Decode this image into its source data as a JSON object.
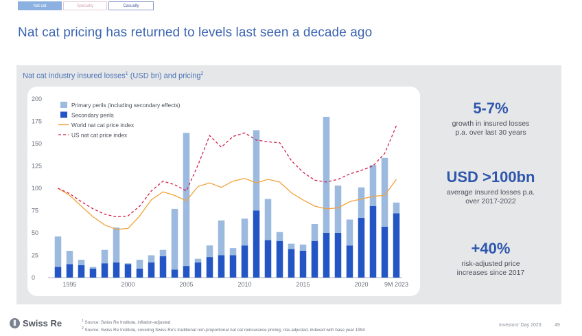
{
  "tabs": [
    {
      "label": "Nat cat",
      "active": true
    },
    {
      "label": "Specialty",
      "active": false
    },
    {
      "label": "Casualty",
      "active": false
    }
  ],
  "page_title": "Nat cat pricing has returned to levels last seen a decade ago",
  "panel": {
    "title": "Nat cat industry insured losses",
    "title_suffix": "(USD bn) and pricing",
    "sup1": "1",
    "sup2": "2"
  },
  "kpis": [
    {
      "value": "5-7%",
      "text1": "growth in insured losses",
      "text2": "p.a. over last 30 years"
    },
    {
      "value": "USD >100bn",
      "text1": "average insured losses p.a.",
      "text2": "over 2017-2022"
    },
    {
      "value": "+40%",
      "text1": "risk-adjusted price",
      "text2": "increases since 2017"
    }
  ],
  "footer": {
    "logo": "Swiss Re",
    "logo_mark": "⫼",
    "note1_num": "1",
    "note1": "Source: Swiss Re Institute, inflation-adjusted",
    "note2_num": "2",
    "note2": "Source: Swiss Re Institute, covering Swiss Re's traditional non-proportional nat cat reinsurance pricing, risk-adjusted, indexed with base year 1994",
    "event": "Investors' Day 2023",
    "page": "49"
  },
  "colors": {
    "primary_perils": "#9cbadf",
    "secondary_perils": "#2356c4",
    "world_index": "#f2a23c",
    "us_index": "#d21f4a",
    "title_blue": "#3b64b0"
  },
  "chart_data": {
    "type": "bar",
    "stacked": true,
    "categories": [
      "1994",
      "1995",
      "1996",
      "1997",
      "1998",
      "1999",
      "2000",
      "2001",
      "2002",
      "2003",
      "2004",
      "2005",
      "2006",
      "2007",
      "2008",
      "2009",
      "2010",
      "2011",
      "2012",
      "2013",
      "2014",
      "2015",
      "2016",
      "2017",
      "2018",
      "2019",
      "2020",
      "2021",
      "2022",
      "9M 2023"
    ],
    "x_tick_labels": [
      {
        "index": 1,
        "label": "1995"
      },
      {
        "index": 6,
        "label": "2000"
      },
      {
        "index": 11,
        "label": "2005"
      },
      {
        "index": 16,
        "label": "2010"
      },
      {
        "index": 21,
        "label": "2015"
      },
      {
        "index": 26,
        "label": "2020"
      },
      {
        "index": 29,
        "label": "9M 2023"
      }
    ],
    "series": [
      {
        "name": "Primary perils (including secondary effects)",
        "kind": "bar",
        "values": [
          34,
          15,
          6,
          2,
          15,
          39,
          1,
          10,
          8,
          7,
          68,
          149,
          4,
          13,
          39,
          8,
          30,
          90,
          46,
          10,
          6,
          7,
          19,
          130,
          53,
          29,
          34,
          46,
          77,
          12
        ]
      },
      {
        "name": "Secondary perils",
        "kind": "bar",
        "values": [
          12,
          15,
          14,
          10,
          16,
          17,
          15,
          10,
          17,
          24,
          9,
          13,
          17,
          23,
          25,
          25,
          36,
          75,
          42,
          41,
          32,
          30,
          41,
          50,
          50,
          36,
          67,
          80,
          57,
          72
        ]
      },
      {
        "name": "World nat cat price index",
        "kind": "line",
        "values": [
          100,
          92,
          80,
          68,
          59,
          54,
          55,
          69,
          87,
          96,
          92,
          86,
          102,
          106,
          101,
          108,
          111,
          106,
          110,
          107,
          95,
          87,
          80,
          77,
          78,
          85,
          88,
          91,
          92,
          110
        ]
      },
      {
        "name": "US nat cat price index",
        "kind": "line",
        "dashed": true,
        "values": [
          100,
          94,
          85,
          77,
          71,
          68,
          69,
          80,
          97,
          108,
          104,
          97,
          126,
          159,
          146,
          158,
          162,
          154,
          152,
          151,
          131,
          118,
          109,
          107,
          110,
          116,
          120,
          125,
          139,
          170
        ]
      }
    ],
    "ylim": [
      0,
      200
    ],
    "yticks": [
      0,
      25,
      50,
      75,
      100,
      125,
      150,
      175,
      200
    ],
    "legend": "top-left",
    "grid": false
  }
}
